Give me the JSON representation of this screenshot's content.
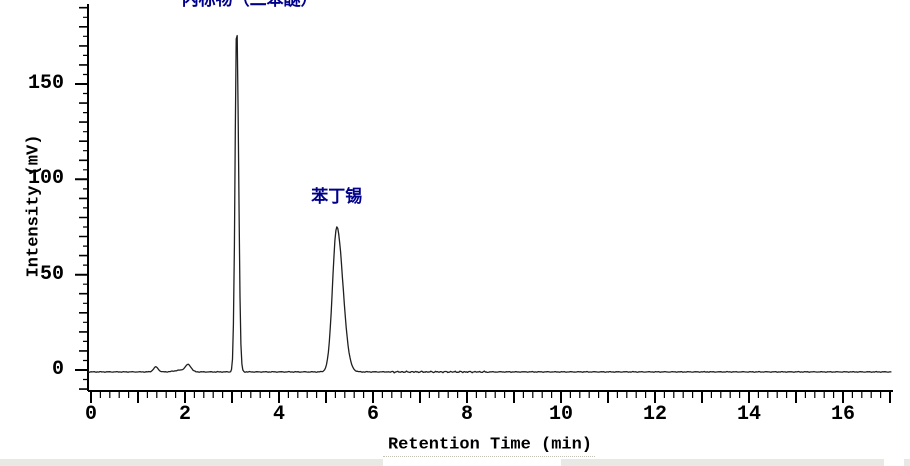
{
  "chart_data": {
    "type": "line",
    "title": "",
    "xlabel": "Retention Time (min)",
    "ylabel": "Intensity (mV)",
    "x_axis": {
      "min": 0,
      "max": 17,
      "minor_step": 0.2,
      "major_step": 1,
      "label_values": [
        0,
        2,
        4,
        6,
        8,
        10,
        12,
        14,
        16
      ],
      "tick_labels": [
        "0",
        "2",
        "4",
        "6",
        "8",
        "10",
        "12",
        "14",
        "16"
      ]
    },
    "y_axis": {
      "min": -10,
      "max": 190,
      "minor_step": 5,
      "mid_step": 10,
      "major_step": 50,
      "label_values": [
        0,
        50,
        100,
        150
      ],
      "tick_labels": [
        "0",
        "50",
        "100",
        "150"
      ]
    },
    "grid": false,
    "legend": null,
    "baseline_mV": -1,
    "peaks": [
      {
        "label": "内标物（二苯醚）",
        "rt_min": 3.1,
        "height_mV": 182,
        "sigma_left_min": 0.035,
        "sigma_right_min": 0.04
      },
      {
        "label": "苯丁锡",
        "rt_min": 5.23,
        "height_mV": 76,
        "sigma_left_min": 0.09,
        "sigma_right_min": 0.13
      }
    ],
    "minor_features": [
      {
        "rt_min": 1.38,
        "height_mV": 2.6,
        "sigma_min": 0.05
      },
      {
        "rt_min": 1.9,
        "height_mV": 0.9,
        "sigma_min": 0.12
      },
      {
        "rt_min": 2.07,
        "height_mV": 3.6,
        "sigma_min": 0.06
      }
    ],
    "colors": {
      "trace": "#1f1f1f",
      "axis": "#000000",
      "peak_label": "#00008b"
    }
  },
  "footer": {
    "strip_color": "#e8e8e4"
  }
}
